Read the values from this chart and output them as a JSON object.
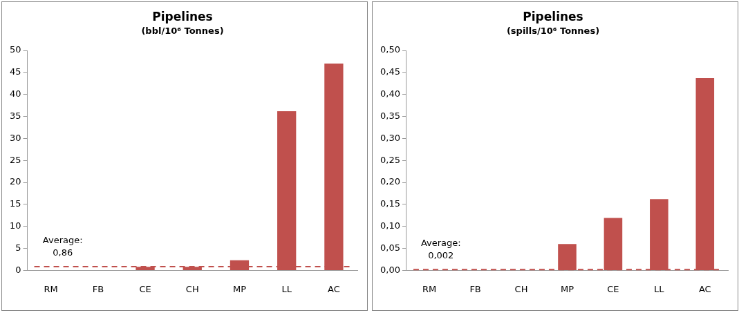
{
  "chart_data": [
    {
      "type": "bar",
      "title": "Pipelines",
      "subtitle": "(bbl/10⁶ Tonnes)",
      "categories": [
        "RM",
        "FB",
        "CE",
        "CH",
        "MP",
        "LL",
        "AC"
      ],
      "values": [
        0,
        0,
        0.8,
        0.8,
        2.3,
        36.2,
        47
      ],
      "color": "#c0504d",
      "ylim": [
        0,
        50
      ],
      "yticks": [
        0,
        5,
        10,
        15,
        20,
        25,
        30,
        35,
        40,
        45,
        50
      ],
      "grid": false,
      "legend": false,
      "ref_lines": [
        {
          "axis": "y",
          "value": 0.86,
          "label": "Average:\n0,86",
          "color": "#c0504d",
          "line_style": "dashed"
        }
      ]
    },
    {
      "type": "bar",
      "title": "Pipelines",
      "subtitle": "(spills/10⁶ Tonnes)",
      "categories": [
        "RM",
        "FB",
        "CH",
        "MP",
        "CE",
        "LL",
        "AC"
      ],
      "values": [
        0,
        0,
        0,
        0.06,
        0.119,
        0.162,
        0.437
      ],
      "color": "#c0504d",
      "ylim": [
        0,
        0.5
      ],
      "yticks": [
        {
          "value": 0,
          "label": "0,00"
        },
        {
          "value": 0.05,
          "label": "0,05"
        },
        {
          "value": 0.1,
          "label": "0,10"
        },
        {
          "value": 0.15,
          "label": "0,15"
        },
        {
          "value": 0.2,
          "label": "0,20"
        },
        {
          "value": 0.25,
          "label": "0,25"
        },
        {
          "value": 0.3,
          "label": "0,30"
        },
        {
          "value": 0.35,
          "label": "0,35"
        },
        {
          "value": 0.4,
          "label": "0,40"
        },
        {
          "value": 0.45,
          "label": "0,45"
        },
        {
          "value": 0.5,
          "label": "0,50"
        }
      ],
      "grid": false,
      "legend": false,
      "ref_lines": [
        {
          "axis": "y",
          "value": 0.002,
          "label": "Average:\n0,002",
          "color": "#c0504d",
          "line_style": "dashed"
        }
      ]
    }
  ]
}
